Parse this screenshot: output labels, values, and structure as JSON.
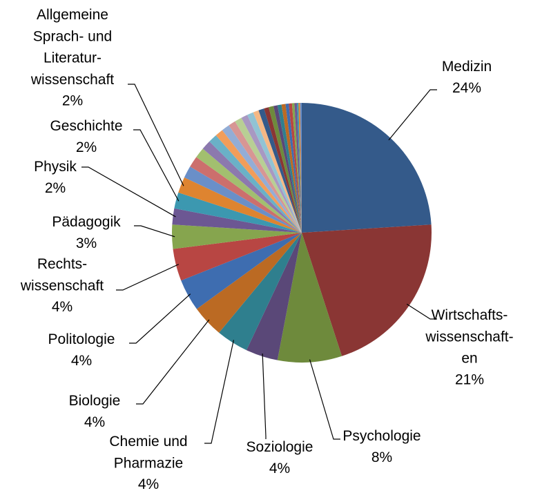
{
  "chart_data": {
    "type": "pie",
    "categories": [
      "Medizin",
      "Wirtschafts-\nwissenschaft-\nen",
      "Psychologie",
      "Soziologie",
      "Chemie und\nPharmazie",
      "Biologie",
      "Politologie",
      "Rechts-\nwissenschaft",
      "Pädagogik",
      "Physik",
      "Geschichte",
      "Allgemeine\nSprach- und\nLiteratur-\nwissenschaft",
      null,
      null,
      null,
      null,
      null,
      null,
      null,
      null,
      null,
      null,
      null,
      null,
      null,
      null,
      null,
      null,
      null,
      null,
      null,
      null,
      null,
      null,
      null,
      null,
      null
    ],
    "values": [
      24,
      21,
      8,
      4,
      4,
      4,
      4,
      4,
      3,
      2,
      2,
      2,
      1.5,
      1.4,
      1.3,
      1.2,
      1.1,
      1.0,
      1.0,
      0.9,
      0.9,
      0.8,
      0.8,
      0.7,
      0.7,
      0.6,
      0.6,
      0.5,
      0.5,
      0.5,
      0.4,
      0.4,
      0.3,
      0.3,
      0.2,
      0.2,
      0.2
    ],
    "value_labels": [
      "24%",
      "21%",
      "8%",
      "4%",
      "4%",
      "4%",
      "4%",
      "4%",
      "3%",
      "2%",
      "2%",
      "2%",
      null,
      null,
      null,
      null,
      null,
      null,
      null,
      null,
      null,
      null,
      null,
      null,
      null,
      null,
      null,
      null,
      null,
      null,
      null,
      null,
      null,
      null,
      null,
      null,
      null
    ],
    "colors": [
      "#345a8a",
      "#8a3634",
      "#6e8a3c",
      "#5a4878",
      "#2f7f8e",
      "#bb6a23",
      "#3e6db0",
      "#b84643",
      "#86a54e",
      "#6c5793",
      "#3c98b0",
      "#de8430",
      "#6a8fc8",
      "#cc6f6d",
      "#a2bf6f",
      "#8c79ae",
      "#6ab1c7",
      "#f29d5a",
      "#93add6",
      "#d79694",
      "#b8cf94",
      "#a898c2",
      "#91c3d4",
      "#f5b885"
    ]
  }
}
